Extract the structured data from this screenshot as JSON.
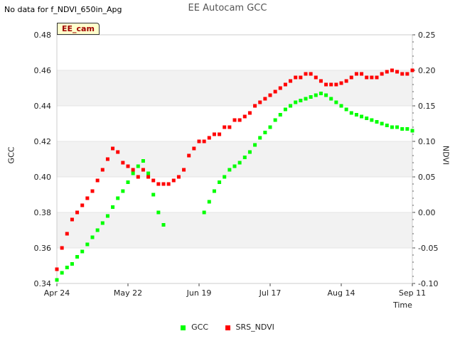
{
  "notice": "No data for f_NDVI_650in_Apg",
  "site_tag": "EE_cam",
  "chart_data": {
    "type": "scatter",
    "title": "EE Autocam GCC",
    "xlabel": "Time",
    "ylabel": "GCC",
    "y2label": "NDVI",
    "ylim": [
      0.34,
      0.48
    ],
    "y2lim": [
      -0.1,
      0.25
    ],
    "xlim": [
      0,
      140
    ],
    "yticks": [
      "0.34",
      "0.36",
      "0.38",
      "0.40",
      "0.42",
      "0.44",
      "0.46",
      "0.48"
    ],
    "y2ticks": [
      "-0.10",
      "-0.05",
      "0.00",
      "0.05",
      "0.10",
      "0.15",
      "0.20",
      "0.25"
    ],
    "xticks": [
      {
        "day": 0,
        "label": "Apr 24"
      },
      {
        "day": 28,
        "label": "May 22"
      },
      {
        "day": 56,
        "label": "Jun 19"
      },
      {
        "day": 84,
        "label": "Jul 17"
      },
      {
        "day": 112,
        "label": "Aug 14"
      },
      {
        "day": 140,
        "label": "Sep 11"
      }
    ],
    "shaded_bands": [
      [
        0.36,
        0.38
      ],
      [
        0.4,
        0.42
      ],
      [
        0.44,
        0.46
      ]
    ],
    "series": [
      {
        "name": "GCC",
        "axis": "left",
        "color": "#00ff00",
        "points": [
          [
            0,
            0.342
          ],
          [
            2,
            0.346
          ],
          [
            4,
            0.349
          ],
          [
            6,
            0.351
          ],
          [
            8,
            0.355
          ],
          [
            10,
            0.358
          ],
          [
            12,
            0.362
          ],
          [
            14,
            0.366
          ],
          [
            16,
            0.37
          ],
          [
            18,
            0.374
          ],
          [
            20,
            0.378
          ],
          [
            22,
            0.383
          ],
          [
            24,
            0.388
          ],
          [
            26,
            0.392
          ],
          [
            28,
            0.397
          ],
          [
            30,
            0.402
          ],
          [
            32,
            0.406
          ],
          [
            34,
            0.409
          ],
          [
            36,
            0.402
          ],
          [
            38,
            0.39
          ],
          [
            40,
            0.38
          ],
          [
            42,
            0.373
          ],
          [
            58,
            0.38
          ],
          [
            60,
            0.386
          ],
          [
            62,
            0.392
          ],
          [
            64,
            0.397
          ],
          [
            66,
            0.4
          ],
          [
            68,
            0.404
          ],
          [
            70,
            0.406
          ],
          [
            72,
            0.408
          ],
          [
            74,
            0.411
          ],
          [
            76,
            0.414
          ],
          [
            78,
            0.418
          ],
          [
            80,
            0.422
          ],
          [
            82,
            0.425
          ],
          [
            84,
            0.428
          ],
          [
            86,
            0.432
          ],
          [
            88,
            0.435
          ],
          [
            90,
            0.438
          ],
          [
            92,
            0.44
          ],
          [
            94,
            0.442
          ],
          [
            96,
            0.443
          ],
          [
            98,
            0.444
          ],
          [
            100,
            0.445
          ],
          [
            102,
            0.446
          ],
          [
            104,
            0.447
          ],
          [
            106,
            0.446
          ],
          [
            108,
            0.444
          ],
          [
            110,
            0.442
          ],
          [
            112,
            0.44
          ],
          [
            114,
            0.438
          ],
          [
            116,
            0.436
          ],
          [
            118,
            0.435
          ],
          [
            120,
            0.434
          ],
          [
            122,
            0.433
          ],
          [
            124,
            0.432
          ],
          [
            126,
            0.431
          ],
          [
            128,
            0.43
          ],
          [
            130,
            0.429
          ],
          [
            132,
            0.428
          ],
          [
            134,
            0.428
          ],
          [
            136,
            0.427
          ],
          [
            138,
            0.427
          ],
          [
            140,
            0.426
          ]
        ]
      },
      {
        "name": "SRS_NDVI",
        "axis": "right",
        "color": "#ff0000",
        "points": [
          [
            0,
            -0.08
          ],
          [
            2,
            -0.05
          ],
          [
            4,
            -0.03
          ],
          [
            6,
            -0.01
          ],
          [
            8,
            0.0
          ],
          [
            10,
            0.01
          ],
          [
            12,
            0.02
          ],
          [
            14,
            0.03
          ],
          [
            16,
            0.045
          ],
          [
            18,
            0.06
          ],
          [
            20,
            0.075
          ],
          [
            22,
            0.09
          ],
          [
            24,
            0.085
          ],
          [
            26,
            0.07
          ],
          [
            28,
            0.065
          ],
          [
            30,
            0.06
          ],
          [
            32,
            0.05
          ],
          [
            34,
            0.06
          ],
          [
            36,
            0.05
          ],
          [
            38,
            0.045
          ],
          [
            40,
            0.04
          ],
          [
            42,
            0.04
          ],
          [
            44,
            0.04
          ],
          [
            46,
            0.045
          ],
          [
            48,
            0.05
          ],
          [
            50,
            0.06
          ],
          [
            52,
            0.08
          ],
          [
            54,
            0.09
          ],
          [
            56,
            0.1
          ],
          [
            58,
            0.1
          ],
          [
            60,
            0.105
          ],
          [
            62,
            0.11
          ],
          [
            64,
            0.11
          ],
          [
            66,
            0.12
          ],
          [
            68,
            0.12
          ],
          [
            70,
            0.13
          ],
          [
            72,
            0.13
          ],
          [
            74,
            0.135
          ],
          [
            76,
            0.14
          ],
          [
            78,
            0.15
          ],
          [
            80,
            0.155
          ],
          [
            82,
            0.16
          ],
          [
            84,
            0.165
          ],
          [
            86,
            0.17
          ],
          [
            88,
            0.175
          ],
          [
            90,
            0.18
          ],
          [
            92,
            0.185
          ],
          [
            94,
            0.19
          ],
          [
            96,
            0.19
          ],
          [
            98,
            0.195
          ],
          [
            100,
            0.195
          ],
          [
            102,
            0.19
          ],
          [
            104,
            0.185
          ],
          [
            106,
            0.18
          ],
          [
            108,
            0.18
          ],
          [
            110,
            0.18
          ],
          [
            112,
            0.182
          ],
          [
            114,
            0.185
          ],
          [
            116,
            0.19
          ],
          [
            118,
            0.195
          ],
          [
            120,
            0.195
          ],
          [
            122,
            0.19
          ],
          [
            124,
            0.19
          ],
          [
            126,
            0.19
          ],
          [
            128,
            0.195
          ],
          [
            130,
            0.198
          ],
          [
            132,
            0.2
          ],
          [
            134,
            0.198
          ],
          [
            136,
            0.195
          ],
          [
            138,
            0.195
          ],
          [
            140,
            0.2
          ]
        ]
      }
    ]
  }
}
